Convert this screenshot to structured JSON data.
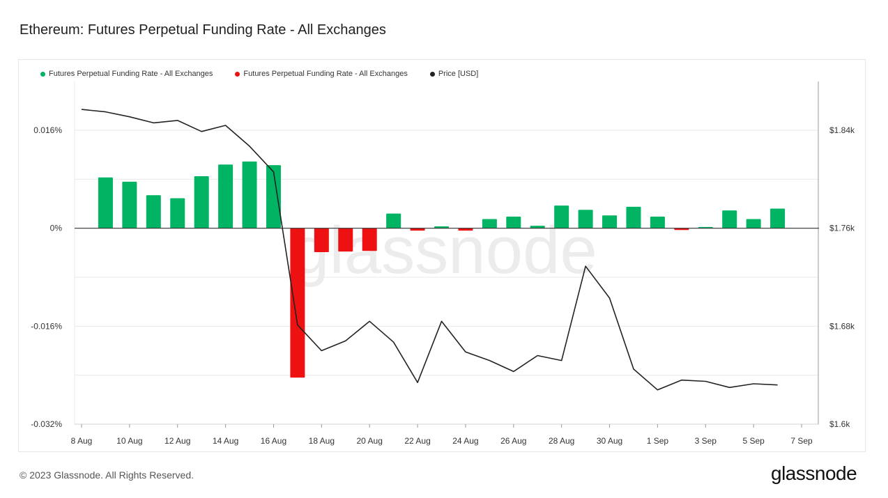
{
  "title": "Ethereum: Futures Perpetual Funding Rate - All Exchanges",
  "footer": "© 2023 Glassnode. All Rights Reserved.",
  "logo_text": "glassnode",
  "watermark": "glassnode",
  "colors": {
    "positive": "#00b464",
    "negative": "#ee1111",
    "price": "#222222",
    "grid": "#e9e9e9"
  },
  "legend": [
    {
      "label": "Futures Perpetual Funding Rate - All Exchanges",
      "color": "#00b464"
    },
    {
      "label": "Futures Perpetual Funding Rate - All Exchanges",
      "color": "#ee1111"
    },
    {
      "label": "Price [USD]",
      "color": "#222222"
    }
  ],
  "chart_data": {
    "type": "bar",
    "x_ticks": [
      "8 Aug",
      "10 Aug",
      "12 Aug",
      "14 Aug",
      "16 Aug",
      "18 Aug",
      "20 Aug",
      "22 Aug",
      "24 Aug",
      "26 Aug",
      "28 Aug",
      "30 Aug",
      "1 Sep",
      "3 Sep",
      "5 Sep",
      "7 Sep"
    ],
    "y_left_ticks": [
      "0.016%",
      "0%",
      "-0.016%",
      "-0.032%"
    ],
    "y_left_tick_values": [
      0.016,
      0,
      -0.016,
      -0.032
    ],
    "y_left_range": [
      -0.032,
      0.024
    ],
    "y_right_ticks": [
      "$1.84k",
      "$1.76k",
      "$1.68k",
      "$1.6k"
    ],
    "y_right_tick_values": [
      1840,
      1760,
      1680,
      1600
    ],
    "y_right_range": [
      1600,
      1920
    ],
    "grid": true,
    "legend_position": "top-left",
    "categories": [
      "9 Aug",
      "10 Aug",
      "11 Aug",
      "12 Aug",
      "13 Aug",
      "14 Aug",
      "15 Aug",
      "16 Aug",
      "17 Aug",
      "18 Aug",
      "19 Aug",
      "20 Aug",
      "21 Aug",
      "22 Aug",
      "23 Aug",
      "24 Aug",
      "25 Aug",
      "26 Aug",
      "27 Aug",
      "28 Aug",
      "29 Aug",
      "30 Aug",
      "31 Aug",
      "1 Sep",
      "2 Sep",
      "3 Sep",
      "4 Sep",
      "5 Sep",
      "6 Sep"
    ],
    "series": [
      {
        "name": "Futures Perpetual Funding Rate - All Exchanges",
        "unit": "%",
        "values": [
          0.0083,
          0.0076,
          0.0054,
          0.0049,
          0.0085,
          0.0104,
          0.0109,
          0.0103,
          -0.0244,
          -0.0039,
          -0.0038,
          -0.0037,
          0.0024,
          -0.0004,
          0.0003,
          -0.0004,
          0.0015,
          0.0019,
          0.0004,
          0.0037,
          0.003,
          0.0021,
          0.0035,
          0.0019,
          -0.0003,
          0.0002,
          0.0029,
          0.0015,
          0.0032
        ]
      },
      {
        "name": "Price [USD]",
        "x": [
          "8 Aug",
          "9 Aug",
          "10 Aug",
          "11 Aug",
          "12 Aug",
          "13 Aug",
          "14 Aug",
          "15 Aug",
          "16 Aug",
          "17 Aug",
          "18 Aug",
          "19 Aug",
          "20 Aug",
          "21 Aug",
          "22 Aug",
          "23 Aug",
          "24 Aug",
          "25 Aug",
          "26 Aug",
          "27 Aug",
          "28 Aug",
          "29 Aug",
          "30 Aug",
          "31 Aug",
          "1 Sep",
          "2 Sep",
          "3 Sep",
          "4 Sep",
          "5 Sep",
          "6 Sep"
        ],
        "values": [
          1857,
          1855,
          1851,
          1846,
          1848,
          1839,
          1844,
          1827,
          1806,
          1681,
          1660,
          1668,
          1684,
          1667,
          1634,
          1684,
          1659,
          1652,
          1643,
          1656,
          1652,
          1729,
          1703,
          1645,
          1628,
          1636,
          1635,
          1630,
          1633,
          1632
        ]
      }
    ]
  }
}
